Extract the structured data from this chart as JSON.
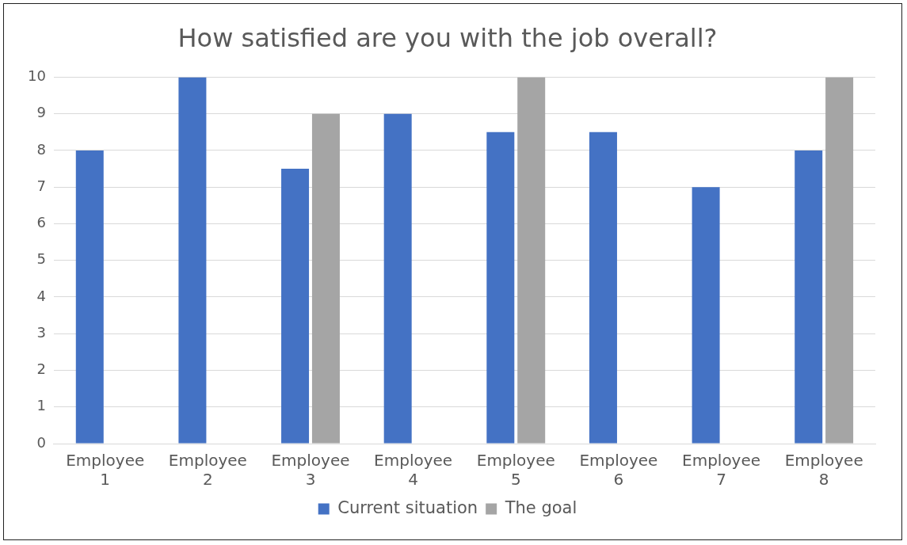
{
  "chart_data": {
    "type": "bar",
    "title": "How satisfied are you with the job overall?",
    "categories": [
      "Employee 1",
      "Employee 2",
      "Employee 3",
      "Employee 4",
      "Employee 5",
      "Employee 6",
      "Employee 7",
      "Employee 8"
    ],
    "series": [
      {
        "name": "Current situation",
        "color": "#4472c4",
        "values": [
          8,
          10,
          7.5,
          9,
          8.5,
          8.5,
          7,
          8
        ]
      },
      {
        "name": "The goal",
        "color": "#a5a5a5",
        "values": [
          null,
          null,
          9,
          null,
          10,
          null,
          null,
          10
        ]
      }
    ],
    "ylim": [
      0,
      10
    ],
    "yticks": [
      0,
      1,
      2,
      3,
      4,
      5,
      6,
      7,
      8,
      9,
      10
    ],
    "grid": "y",
    "legend": "bottom"
  }
}
